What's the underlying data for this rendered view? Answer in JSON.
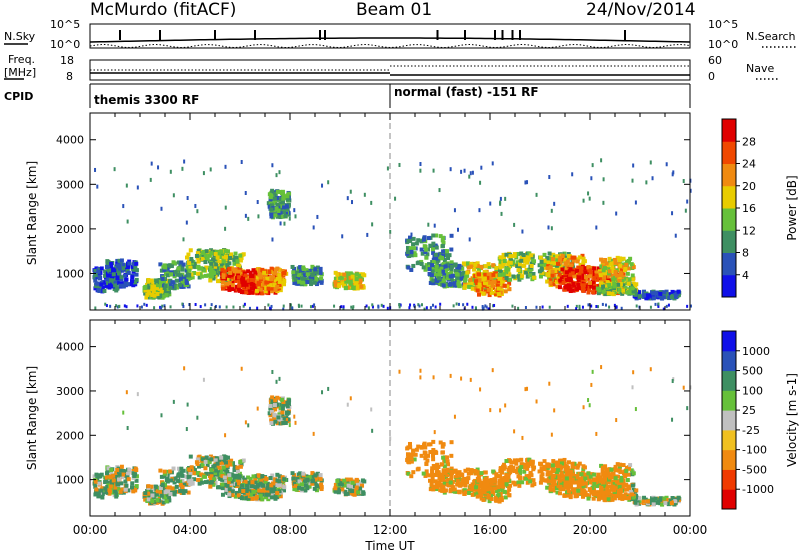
{
  "header": {
    "station": "McMurdo (fitACF)",
    "beam": "Beam 01",
    "date": "24/Nov/2014"
  },
  "status_panels": {
    "nsky": {
      "label": "N.Sky",
      "tick_top": "10^5",
      "tick_bottom": "10^0"
    },
    "nsearch": {
      "label": "N.Search",
      "tick_top": "10^5",
      "tick_bottom": "10^0"
    },
    "freq": {
      "label_line1": "Freq.",
      "label_line2": "[MHz]",
      "tick_top": "18",
      "tick_bottom": "8"
    },
    "nave": {
      "label": "Nave",
      "tick_top": "60",
      "tick_bottom": "0"
    },
    "cpid": {
      "label": "CPID",
      "modes": [
        "themis 3300 RF",
        "normal (fast) -151 RF"
      ]
    }
  },
  "colors": {
    "power": [
      "#1010e8",
      "#2a52b8",
      "#3e8f62",
      "#66c03a",
      "#e8cc00",
      "#f08a10",
      "#f04800",
      "#e00000"
    ],
    "velocity": [
      "#e00000",
      "#f03a00",
      "#f08a10",
      "#f0c020",
      "#c0c0c0",
      "#66c03a",
      "#3e8f62",
      "#2a52b8",
      "#1010e8"
    ]
  },
  "chart_data": [
    {
      "type": "heatmap",
      "panel": "power",
      "ylabel": "Slant Range [km]",
      "ylim": [
        180,
        4600
      ],
      "yticks": [
        "1000",
        "2000",
        "3000",
        "4000"
      ],
      "colorbar_label": "Power [dB]",
      "colorbar_ticks": [
        "4",
        "8",
        "12",
        "16",
        "20",
        "24",
        "28"
      ],
      "colorbar_range": [
        0,
        32
      ],
      "grid": false
    },
    {
      "type": "heatmap",
      "panel": "velocity",
      "ylabel": "Slant Range [km]",
      "xlabel": "Time UT",
      "ylim": [
        180,
        4600
      ],
      "yticks": [
        "1000",
        "2000",
        "3000",
        "4000"
      ],
      "xticks": [
        "00:00",
        "04:00",
        "08:00",
        "12:00",
        "16:00",
        "20:00",
        "00:00"
      ],
      "xlim_hours": [
        0,
        24
      ],
      "colorbar_label": "Velocity [m s-1]",
      "colorbar_ticks": [
        "1000",
        "500",
        "100",
        "25",
        "-25",
        "-100",
        "-500",
        "-1000"
      ],
      "grid": false
    }
  ]
}
